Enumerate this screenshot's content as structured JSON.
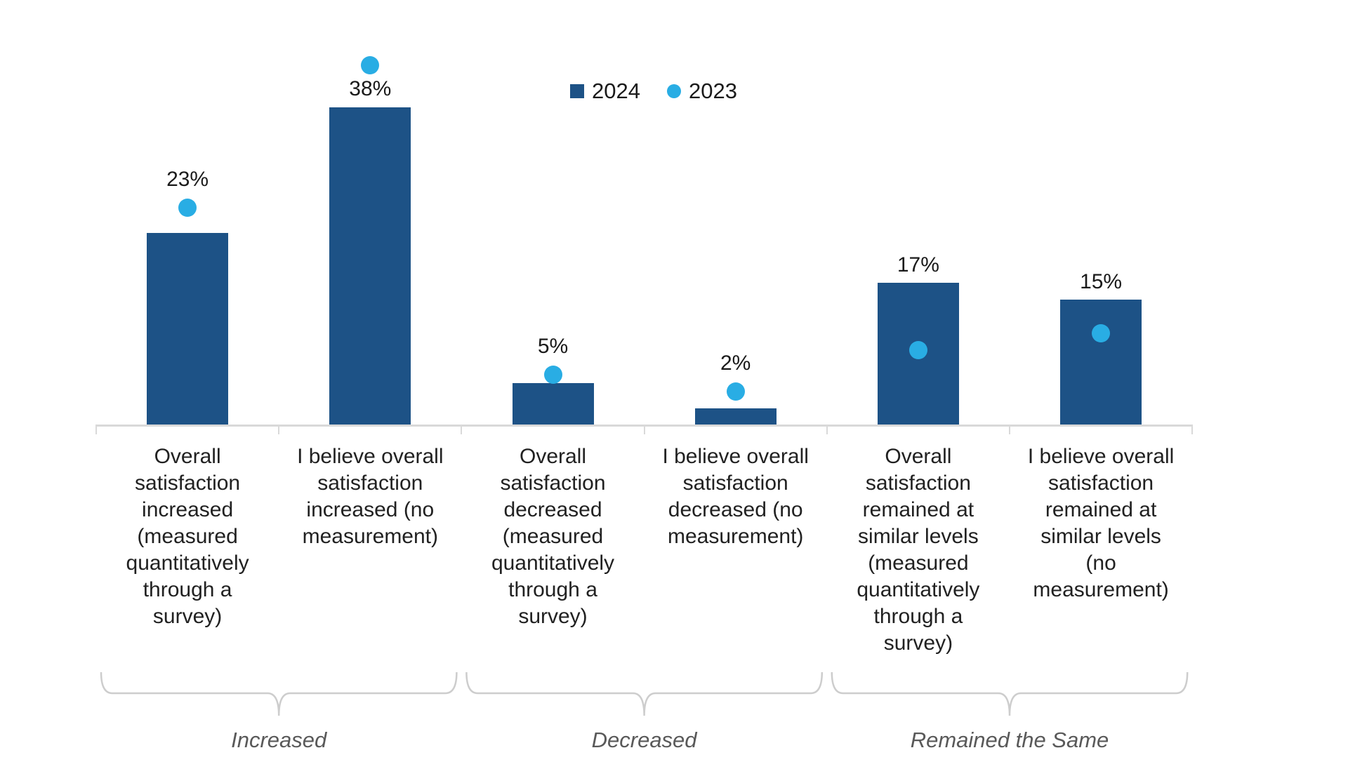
{
  "chart_data": {
    "type": "bar",
    "title": "",
    "xlabel": "",
    "ylabel": "",
    "ylim": [
      0,
      45
    ],
    "grid": false,
    "legend": {
      "position": "top-center",
      "items": [
        "2024",
        "2023"
      ]
    },
    "categories": [
      "Overall\nsatisfaction\nincreased\n(measured\nquantitatively\nthrough a\nsurvey)",
      "I believe overall\nsatisfaction\nincreased (no\nmeasurement)",
      "Overall\nsatisfaction\ndecreased\n(measured\nquantitatively\nthrough a\nsurvey)",
      "I believe overall\nsatisfaction\ndecreased (no\nmeasurement)",
      "Overall\nsatisfaction\nremained at\nsimilar levels\n(measured\nquantitatively\nthrough a\nsurvey)",
      "I believe overall\nsatisfaction\nremained at\nsimilar levels\n(no\nmeasurement)"
    ],
    "series": [
      {
        "name": "2024",
        "mark": "bar",
        "color": "#1D5286",
        "values": [
          23,
          38,
          5,
          2,
          17,
          15
        ],
        "data_labels": [
          "23%",
          "38%",
          "5%",
          "2%",
          "17%",
          "15%"
        ]
      },
      {
        "name": "2023",
        "mark": "circle-marker",
        "color": "#29ADE4",
        "values": [
          26,
          43,
          6,
          4,
          9,
          11
        ],
        "values_estimated_from_marker_positions": true,
        "data_labels": []
      }
    ],
    "value_label_positions": [
      "above-marker",
      "below-marker",
      "above-marker",
      "above-marker",
      "above-bar",
      "above-bar"
    ],
    "group_axis": [
      {
        "label": "Increased",
        "categories": [
          0,
          1
        ]
      },
      {
        "label": "Decreased",
        "categories": [
          2,
          3
        ]
      },
      {
        "label": "Remained the Same",
        "categories": [
          4,
          5
        ]
      }
    ]
  },
  "colors": {
    "axis": "#d9d9d9",
    "bracket": "#cdcdcd",
    "group_label": "#595959",
    "text": "#1a1a1a"
  }
}
